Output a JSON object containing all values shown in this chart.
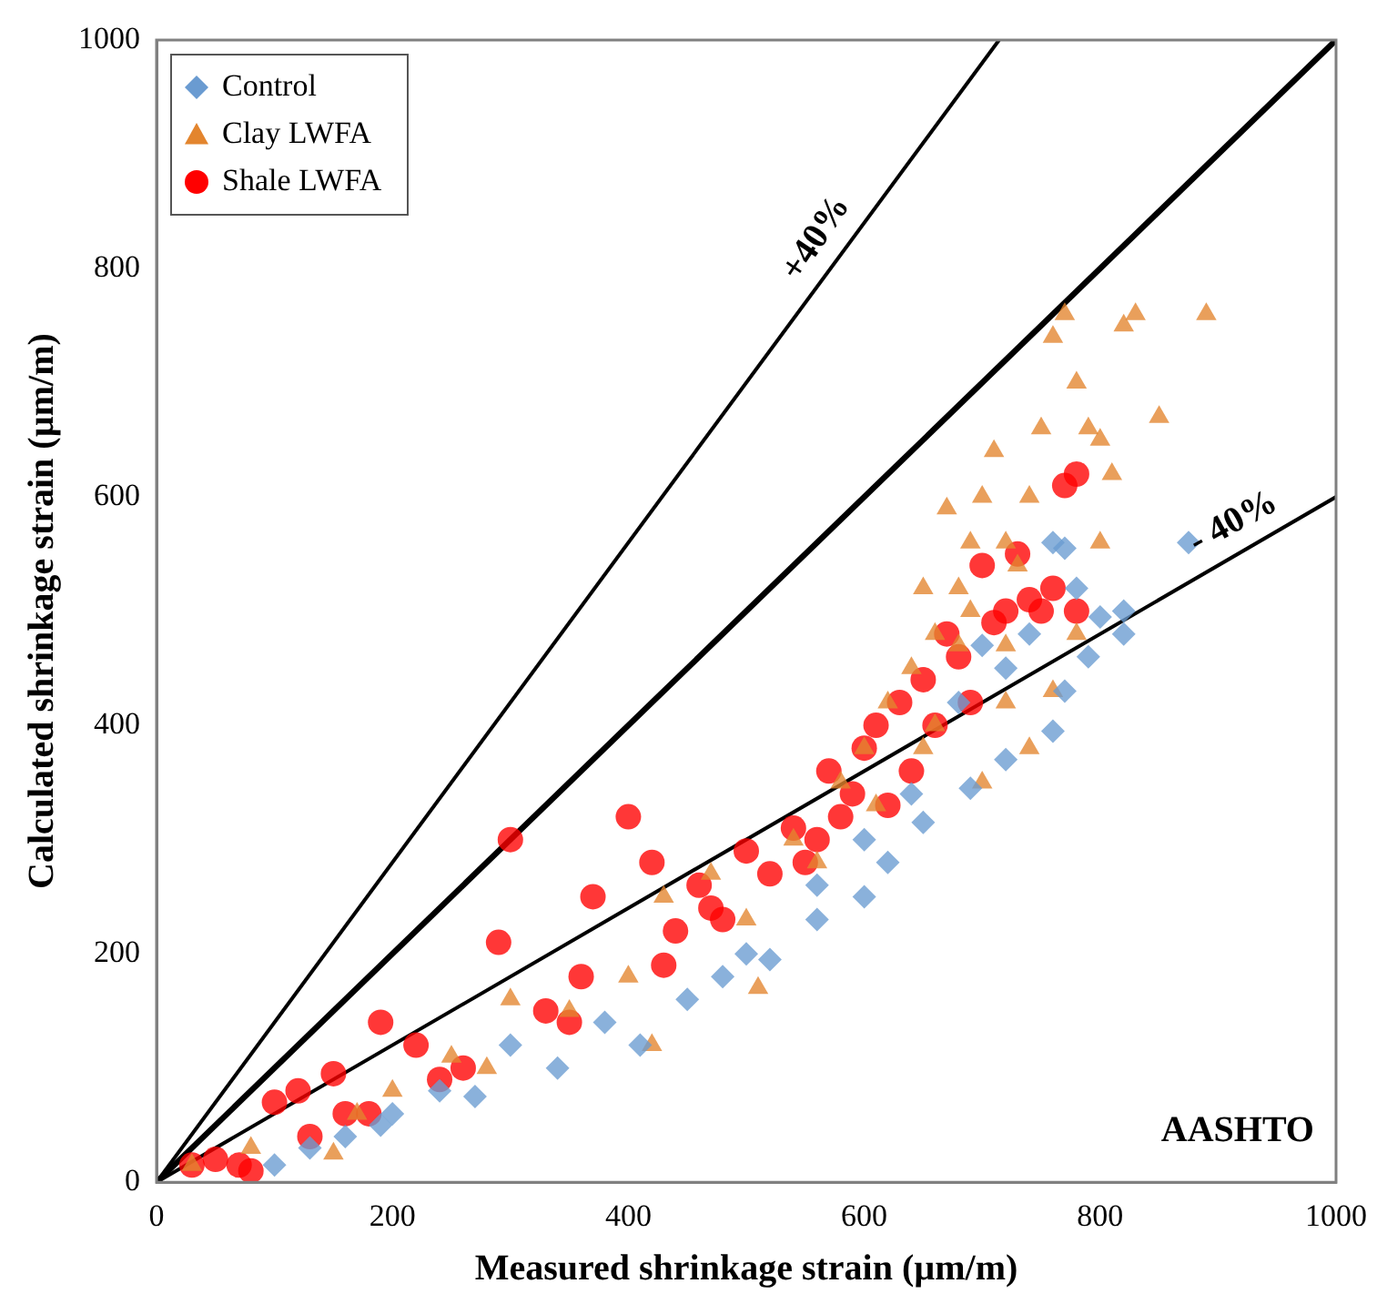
{
  "chart_data": {
    "type": "scatter",
    "xlabel": "Measured shrinkage strain (µm/m)",
    "ylabel": "Calculated shrinkage strain (µm/m)",
    "xlim": [
      0,
      1000
    ],
    "ylim": [
      0,
      1000
    ],
    "xticks": [
      0,
      200,
      400,
      600,
      800,
      1000
    ],
    "yticks": [
      0,
      200,
      400,
      600,
      800,
      1000
    ],
    "grid": false,
    "legend": "top left",
    "series": [
      {
        "name": "Control",
        "color": "#6a9bd1",
        "marker": "diamond",
        "x": [
          100,
          130,
          160,
          190,
          200,
          240,
          270,
          300,
          340,
          380,
          410,
          450,
          480,
          500,
          520,
          560,
          560,
          600,
          600,
          620,
          640,
          650,
          680,
          690,
          700,
          720,
          720,
          740,
          760,
          760,
          770,
          770,
          780,
          790,
          800,
          820,
          820,
          875
        ],
        "values": [
          15,
          30,
          40,
          50,
          60,
          80,
          75,
          120,
          100,
          140,
          120,
          160,
          180,
          200,
          195,
          230,
          260,
          250,
          300,
          280,
          340,
          315,
          420,
          345,
          470,
          370,
          450,
          480,
          395,
          560,
          430,
          555,
          520,
          460,
          495,
          480,
          500,
          560
        ]
      },
      {
        "name": "Clay LWFA",
        "color": "#e3852e",
        "marker": "triangle",
        "x": [
          30,
          80,
          150,
          170,
          200,
          250,
          280,
          300,
          350,
          400,
          420,
          430,
          470,
          500,
          510,
          540,
          560,
          580,
          600,
          610,
          620,
          640,
          650,
          650,
          660,
          660,
          670,
          680,
          680,
          690,
          690,
          700,
          700,
          710,
          720,
          720,
          720,
          730,
          740,
          740,
          750,
          760,
          760,
          770,
          780,
          780,
          790,
          800,
          800,
          810,
          820,
          830,
          850,
          890
        ],
        "values": [
          15,
          30,
          25,
          60,
          80,
          110,
          100,
          160,
          150,
          180,
          120,
          250,
          270,
          230,
          170,
          300,
          280,
          350,
          380,
          330,
          420,
          450,
          380,
          520,
          480,
          400,
          590,
          520,
          470,
          560,
          500,
          600,
          350,
          640,
          470,
          420,
          560,
          540,
          600,
          380,
          660,
          740,
          430,
          760,
          700,
          480,
          660,
          650,
          560,
          620,
          750,
          760,
          670,
          760
        ]
      },
      {
        "name": "Shale LWFA",
        "color": "#ff0000",
        "marker": "circle",
        "x": [
          30,
          50,
          70,
          80,
          100,
          120,
          130,
          150,
          160,
          180,
          190,
          220,
          240,
          260,
          290,
          300,
          330,
          350,
          360,
          370,
          400,
          420,
          430,
          440,
          460,
          470,
          480,
          500,
          520,
          540,
          550,
          560,
          570,
          580,
          590,
          600,
          610,
          620,
          630,
          640,
          650,
          660,
          670,
          680,
          690,
          710,
          700,
          720,
          730,
          740,
          750,
          760,
          770,
          780,
          780
        ],
        "values": [
          15,
          20,
          15,
          10,
          70,
          80,
          40,
          95,
          60,
          60,
          140,
          120,
          90,
          100,
          210,
          300,
          150,
          140,
          180,
          250,
          320,
          280,
          190,
          220,
          260,
          240,
          230,
          290,
          270,
          310,
          280,
          300,
          360,
          320,
          340,
          380,
          400,
          330,
          420,
          360,
          440,
          400,
          480,
          460,
          420,
          490,
          540,
          500,
          550,
          510,
          500,
          520,
          610,
          620,
          500
        ]
      },
      {
        "type": "line",
        "color": "#000000",
        "marker": "none",
        "x": [
          0,
          1000
        ],
        "values": [
          0,
          1000
        ]
      },
      {
        "type": "line",
        "color": "#000000",
        "marker": "none",
        "x": [
          0,
          714.3
        ],
        "values": [
          0,
          1000
        ]
      },
      {
        "type": "line",
        "color": "#000000",
        "marker": "none",
        "x": [
          0,
          1000
        ],
        "values": [
          0,
          600
        ]
      }
    ],
    "annotations": [
      {
        "text": "+40%",
        "x": 580,
        "y": 812
      },
      {
        "text": "- 40%",
        "x": 925,
        "y": 555
      },
      "AASHTO"
    ]
  }
}
